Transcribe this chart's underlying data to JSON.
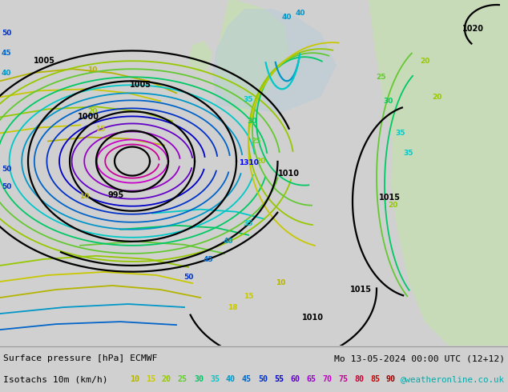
{
  "title_line1": "Surface pressure [hPa] ECMWF",
  "title_line2": "Mo 13-05-2024 00:00 UTC (12+12)",
  "legend_label": "Isotachs 10m (km/h)",
  "legend_values": [
    10,
    15,
    20,
    25,
    30,
    35,
    40,
    45,
    50,
    55,
    60,
    65,
    70,
    75,
    80,
    85,
    90
  ],
  "legend_colors": [
    "#b4b400",
    "#c8c800",
    "#96c800",
    "#64c832",
    "#00c864",
    "#00c8c8",
    "#0096c8",
    "#0064c8",
    "#0032c8",
    "#0000c8",
    "#6400c8",
    "#9600c8",
    "#c800c8",
    "#c80096",
    "#c80032",
    "#c80000",
    "#960000"
  ],
  "watermark": "@weatheronline.co.uk",
  "fig_width": 6.34,
  "fig_height": 4.9,
  "dpi": 100,
  "map_gray": "#d0d0d0",
  "land_green": "#c8dbb8",
  "sea_blue": "#b0c8d8",
  "isobar_color": "#000000",
  "isobar_lw": 1.6
}
